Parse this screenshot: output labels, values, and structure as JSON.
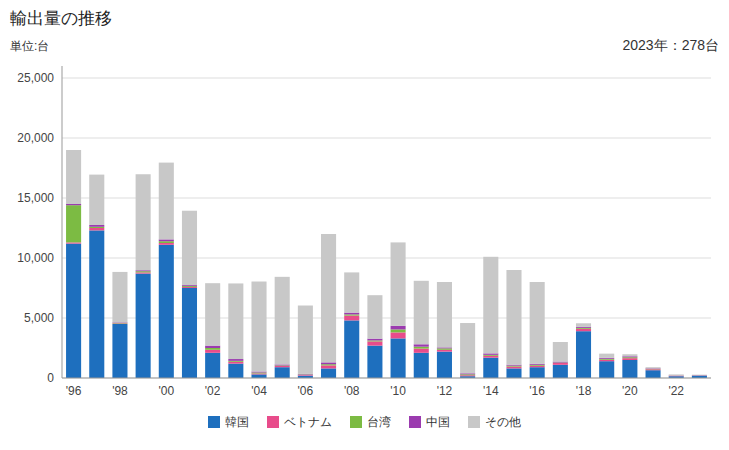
{
  "chart_data": {
    "type": "bar",
    "stacked": true,
    "title": "輸出量の推移",
    "y_label": "単位:台",
    "annotations": [
      "2023年：278台"
    ],
    "categories": [
      "'96",
      null,
      "'98",
      null,
      "'00",
      null,
      "'02",
      null,
      "'04",
      null,
      "'06",
      null,
      "'08",
      null,
      "'10",
      null,
      "'12",
      null,
      "'14",
      null,
      "'16",
      null,
      "'18",
      null,
      "'20",
      null,
      "'22",
      null
    ],
    "series": [
      {
        "name": "韓国",
        "color": "#1E6FBE",
        "values": [
          11200,
          12300,
          4500,
          8700,
          11100,
          7500,
          2100,
          1200,
          300,
          900,
          200,
          800,
          4800,
          2700,
          3300,
          2100,
          2200,
          150,
          1700,
          800,
          900,
          1100,
          3900,
          1400,
          1500,
          650,
          150,
          200
        ]
      },
      {
        "name": "ベトナム",
        "color": "#E84C8B",
        "values": [
          100,
          200,
          50,
          100,
          150,
          80,
          250,
          150,
          80,
          100,
          60,
          250,
          400,
          350,
          500,
          350,
          150,
          80,
          150,
          150,
          120,
          150,
          200,
          120,
          150,
          80,
          40,
          25
        ]
      },
      {
        "name": "台湾",
        "color": "#7CBB43",
        "values": [
          3100,
          100,
          50,
          100,
          150,
          80,
          150,
          80,
          80,
          50,
          40,
          100,
          100,
          80,
          250,
          160,
          120,
          80,
          80,
          80,
          80,
          40,
          80,
          80,
          80,
          40,
          15,
          8
        ]
      },
      {
        "name": "中国",
        "color": "#9B3BAF",
        "values": [
          100,
          150,
          40,
          80,
          150,
          80,
          200,
          150,
          80,
          80,
          40,
          150,
          150,
          150,
          300,
          200,
          80,
          80,
          120,
          80,
          80,
          80,
          80,
          80,
          80,
          40,
          15,
          8
        ]
      },
      {
        "name": "その他",
        "color": "#C8C8C8",
        "values": [
          4500,
          4200,
          4200,
          8000,
          6400,
          6200,
          5200,
          6300,
          7500,
          7300,
          5700,
          10700,
          3350,
          3620,
          6950,
          5290,
          5450,
          4190,
          8050,
          7890,
          6820,
          1630,
          300,
          350,
          170,
          90,
          80,
          37
        ]
      }
    ],
    "ylim": [
      0,
      26000
    ],
    "yticks": [
      0,
      {
        "value": 5000,
        "label": "5,000"
      },
      {
        "value": 10000,
        "label": "10,000"
      },
      {
        "value": 15000,
        "label": "15,000"
      },
      {
        "value": 20000,
        "label": "20,000"
      },
      {
        "value": 25000,
        "label": "25,000"
      }
    ],
    "grid": true,
    "legend": "bottom"
  }
}
